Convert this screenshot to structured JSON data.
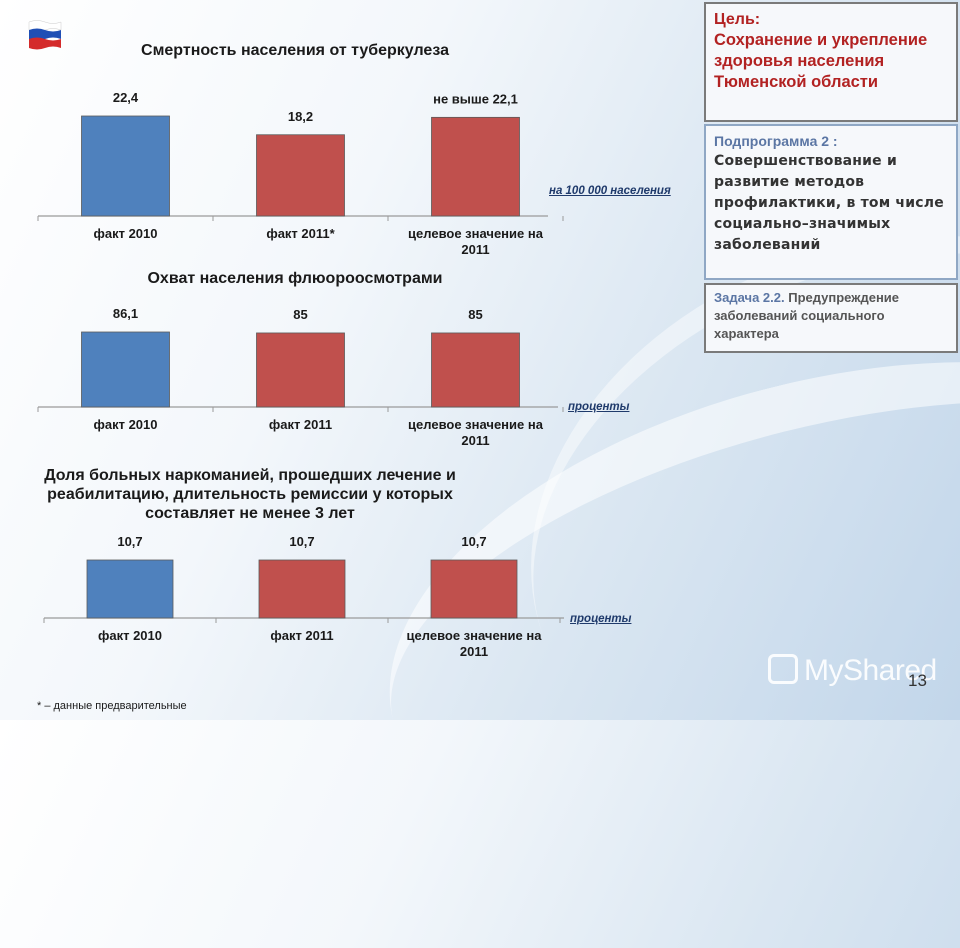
{
  "chart_data": [
    {
      "type": "bar",
      "title": "Смертность населения от туберкулеза",
      "unit_label": "на 100 000 населения",
      "categories": [
        "факт 2010",
        "факт 2011*",
        "целевое значение на 2011"
      ],
      "values": [
        22.4,
        18.2,
        22.1
      ],
      "data_labels": [
        "22,4",
        "18,2",
        "не выше 22,1"
      ],
      "bar_colors": [
        "#4f81bd",
        "#c0504d",
        "#c0504d"
      ]
    },
    {
      "type": "bar",
      "title": "Охват населения флюороосмотрами",
      "unit_label": "проценты",
      "categories": [
        "факт 2010",
        "факт 2011",
        "целевое значение на 2011"
      ],
      "values": [
        86.1,
        85,
        85
      ],
      "data_labels": [
        "86,1",
        "85",
        "85"
      ],
      "bar_colors": [
        "#4f81bd",
        "#c0504d",
        "#c0504d"
      ]
    },
    {
      "type": "bar",
      "title": "Доля больных наркоманией, прошедших лечение и реабилитацию, длительность ремиссии у которых составляет не менее 3 лет",
      "unit_label": "проценты",
      "categories": [
        "факт 2010",
        "факт 2011",
        "целевое значение на 2011"
      ],
      "values": [
        10.7,
        10.7,
        10.7
      ],
      "data_labels": [
        "10,7",
        "10,7",
        "10,7"
      ],
      "bar_colors": [
        "#4f81bd",
        "#c0504d",
        "#c0504d"
      ]
    }
  ],
  "goal": {
    "label": "Цель:",
    "text": "Сохранение и укрепление здоровья населения Тюменской области"
  },
  "subprogram": {
    "label": "Подпрограмма 2 :",
    "text": "Совершенствование и развитие методов профилактики, в том числе социально–значимых заболеваний"
  },
  "task": {
    "label": "Задача 2.2.",
    "text": "Предупреждение заболеваний социального характера"
  },
  "footnote": "* – данные предварительные",
  "page_number": "13",
  "watermark": "MyShared",
  "colors": {
    "blue_bar": "#4f81bd",
    "red_bar": "#c0504d",
    "goal_red": "#b22222"
  }
}
